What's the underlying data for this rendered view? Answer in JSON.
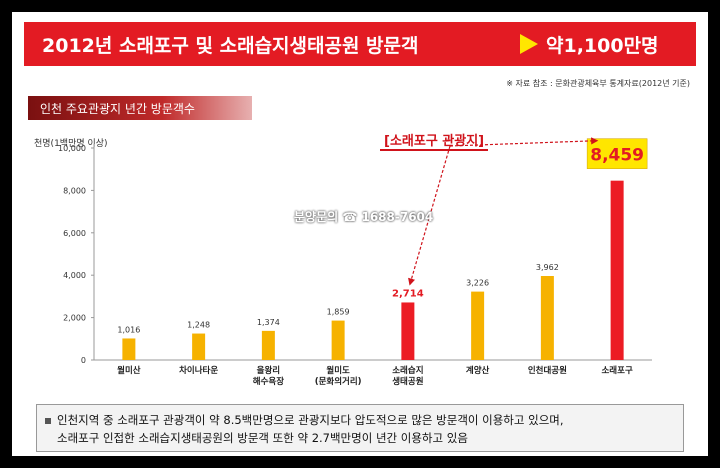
{
  "banner": {
    "title": "2012년 소래포구 및 소래습지생태공원 방문객",
    "value": "약1,100만명"
  },
  "source": "※ 자료 참조 : 문화관광체육부 통계자료(2012년 기준)",
  "subtitle": "인천 주요관광지 년간 방문객수",
  "watermark": "분양문의 ☎ 1688-7604",
  "callout": "[소래포구 관광지]",
  "colors": {
    "banner": "#e31b23",
    "bar_default": "#f6b200",
    "bar_highlight": "#ec1c24",
    "highlight_box": "#ffe600"
  },
  "note": {
    "line1": "인천지역 중 소래포구 관광객이 약 8.5백만명으로 관광지보다 압도적으로 많은 방문객이 이용하고 있으며,",
    "line2": "소래포구 인접한 소래습지생태공원의 방문객 또한 약 2.7백만명이 년간 이용하고 있음"
  },
  "chart_data": {
    "type": "bar",
    "ylabel": "천명(1백만명 이상)",
    "ylim": [
      0,
      10000
    ],
    "yticks": [
      "0",
      "2,000",
      "4,000",
      "6,000",
      "8,000",
      "10,000"
    ],
    "categories": [
      [
        "월미산"
      ],
      [
        "차이나타운"
      ],
      [
        "을왕리",
        "해수욕장"
      ],
      [
        "월미도",
        "(문화의거리)"
      ],
      [
        "소래습지",
        "생태공원"
      ],
      [
        "계양산"
      ],
      [
        "인천대공원"
      ],
      [
        "소래포구"
      ]
    ],
    "values": [
      1016,
      1248,
      1374,
      1859,
      2714,
      3226,
      3962,
      8459
    ],
    "labels": [
      "1,016",
      "1,248",
      "1,374",
      "1,859",
      "2,714",
      "3,226",
      "3,962",
      "8,459"
    ],
    "highlight": [
      "default",
      "default",
      "default",
      "default",
      "red",
      "default",
      "default",
      "red"
    ]
  }
}
